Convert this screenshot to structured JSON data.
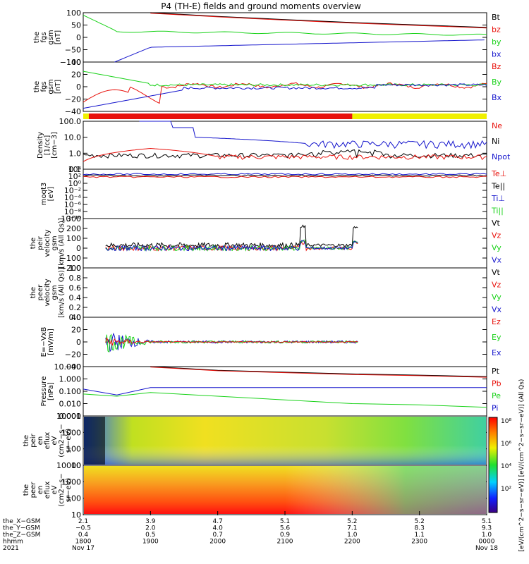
{
  "title": "P4 (TH-E) fields and ground moments overview",
  "colors": {
    "black": "#000000",
    "red": "#e8120c",
    "green": "#19d219",
    "blue": "#1414cc",
    "bar_red": "#e8120c",
    "bar_yellow": "#f0f000"
  },
  "panels": [
    {
      "ylabel": [
        "the",
        "fgs",
        "gsm",
        "[nT]"
      ],
      "ticks": [
        "100",
        "50",
        "0",
        "−50",
        "−100"
      ],
      "legend": [
        {
          "t": "Bt",
          "c": "black"
        },
        {
          "t": "bz",
          "c": "red"
        },
        {
          "t": "by",
          "c": "green"
        },
        {
          "t": "bx",
          "c": "blue"
        }
      ]
    },
    {
      "ylabel": [
        "the",
        "fgs",
        "gsm",
        "[nT]"
      ],
      "ticks": [
        "40",
        "20",
        "0",
        "−20",
        "−40"
      ],
      "legend": [
        {
          "t": "Bz",
          "c": "red"
        },
        {
          "t": "By",
          "c": "green"
        },
        {
          "t": "Bx",
          "c": "blue"
        }
      ]
    },
    {
      "ylabel": [
        "Density",
        "[1/cc]",
        "[cm−3]"
      ],
      "ticks": [
        "100.0",
        "10.0",
        "1.0",
        "0.1"
      ],
      "legend": [
        {
          "t": "Ne",
          "c": "red"
        },
        {
          "t": "Ni",
          "c": "black"
        },
        {
          "t": "Npot",
          "c": "blue"
        }
      ]
    },
    {
      "ylabel": [
        "moqt3",
        "[eV]"
      ],
      "ticks": [
        "10⁴",
        "10²",
        "10⁰",
        "10⁻²",
        "10⁻⁴",
        "10⁻⁶",
        "10⁻⁸",
        "10⁻¹⁰"
      ],
      "legend": [
        {
          "t": "Te⊥",
          "c": "red"
        },
        {
          "t": "Te||",
          "c": "black"
        },
        {
          "t": "Ti⊥",
          "c": "blue"
        },
        {
          "t": "Ti||",
          "c": "green"
        }
      ]
    },
    {
      "ylabel": [
        "the",
        "peir",
        "velocity",
        "gsm",
        "[km/s (All Qs)]"
      ],
      "ticks": [
        "300",
        "200",
        "100",
        "0",
        "−100",
        "−200"
      ],
      "legend": [
        {
          "t": "Vt",
          "c": "black"
        },
        {
          "t": "Vz",
          "c": "red"
        },
        {
          "t": "Vy",
          "c": "green"
        },
        {
          "t": "Vx",
          "c": "blue"
        }
      ]
    },
    {
      "ylabel": [
        "the",
        "peer",
        "velocity",
        "gsm",
        "[km/s (All Qs)]"
      ],
      "ticks": [
        "1.0",
        "0.8",
        "0.6",
        "0.4",
        "0.2",
        "0.0"
      ],
      "legend": [
        {
          "t": "Vt",
          "c": "black"
        },
        {
          "t": "Vz",
          "c": "red"
        },
        {
          "t": "Vy",
          "c": "green"
        },
        {
          "t": "Vx",
          "c": "blue"
        }
      ]
    },
    {
      "ylabel": [
        "E=−VxB",
        "[mV/m]"
      ],
      "ticks": [
        "40",
        "20",
        "0",
        "−20",
        "−40"
      ],
      "legend": [
        {
          "t": "Ez",
          "c": "red"
        },
        {
          "t": "Ey",
          "c": "green"
        },
        {
          "t": "Ex",
          "c": "blue"
        }
      ]
    },
    {
      "ylabel": [
        "Pressure",
        "[nPa]"
      ],
      "ticks": [
        "10.000",
        "1.000",
        "0.100",
        "0.010",
        "0.001"
      ],
      "legend": [
        {
          "t": "Pt",
          "c": "black"
        },
        {
          "t": "Pb",
          "c": "red"
        },
        {
          "t": "Pe",
          "c": "green"
        },
        {
          "t": "Pi",
          "c": "blue"
        }
      ]
    },
    {
      "ylabel": [
        "the",
        "peir",
        "en",
        "eflux",
        "eV",
        "(cm2−s−",
        "sr−eV)"
      ],
      "ticks": [
        "10000",
        "1000",
        "100",
        "10"
      ],
      "legend": []
    },
    {
      "ylabel": [
        "the",
        "peer",
        "en",
        "eflux",
        "eV",
        "(cm2−s−",
        "sr−eV)"
      ],
      "ticks": [
        "10000",
        "1000",
        "100",
        "10"
      ],
      "legend": []
    }
  ],
  "colorbar": {
    "ticks": [
      "10⁸",
      "10⁶",
      "10⁴",
      "10²"
    ],
    "label": "[eV/(cm^2−s−sr−eV)] [eV/(cm^2−s−sr−eV)] (All Qs)"
  },
  "xaxis": {
    "row_labels": [
      "the_X−GSM",
      "the_Y−GSM",
      "the_Z−GSM",
      "hhmm",
      "2021"
    ],
    "columns": [
      {
        "vals": [
          "2.1",
          "−0.5",
          "0.4",
          "1800",
          "Nov 17"
        ]
      },
      {
        "vals": [
          "3.9",
          "2.0",
          "0.5",
          "1900",
          ""
        ]
      },
      {
        "vals": [
          "4.7",
          "4.0",
          "0.7",
          "2000",
          ""
        ]
      },
      {
        "vals": [
          "5.1",
          "5.6",
          "0.9",
          "2100",
          ""
        ]
      },
      {
        "vals": [
          "5.2",
          "7.1",
          "1.0",
          "2200",
          ""
        ]
      },
      {
        "vals": [
          "5.2",
          "8.3",
          "1.1",
          "2300",
          ""
        ]
      },
      {
        "vals": [
          "5.1",
          "9.3",
          "1.0",
          "0000",
          "Nov 18"
        ]
      }
    ]
  },
  "chart_data": {
    "type": "line",
    "title": "P4 (TH-E) fields and ground moments overview",
    "time_range": [
      "2021-11-17 18:00",
      "2021-11-18 00:00"
    ],
    "series": [
      {
        "name": "Bt",
        "panel": 0,
        "t": [
          1800,
          1900,
          2000,
          2100,
          2200,
          2300,
          2400
        ],
        "values": [
          110,
          100,
          85,
          72,
          60,
          50,
          40
        ]
      },
      {
        "name": "by",
        "panel": 0,
        "t": [
          1800,
          1830,
          1900,
          2000,
          2100,
          2200,
          2300,
          2400
        ],
        "values": [
          90,
          25,
          15,
          10,
          5,
          2,
          10,
          15
        ]
      },
      {
        "name": "bx",
        "panel": 0,
        "t": [
          1830,
          1900,
          2000,
          2100,
          2200,
          2300,
          2400
        ],
        "values": [
          -100,
          -40,
          -20,
          -15,
          -10,
          -8,
          -8
        ]
      },
      {
        "name": "Pt",
        "panel": 7,
        "t": [
          1900,
          2000,
          2100,
          2200,
          2300,
          2400
        ],
        "values": [
          10,
          5,
          3.5,
          2.5,
          2,
          1.5
        ]
      },
      {
        "name": "Pe",
        "panel": 7,
        "t": [
          1800,
          1830,
          1900,
          2000,
          2100,
          2200,
          2300,
          2400
        ],
        "values": [
          0.06,
          0.04,
          0.08,
          0.04,
          0.02,
          0.01,
          0.008,
          0.005
        ]
      },
      {
        "name": "Pi",
        "panel": 7,
        "t": [
          1800,
          1830,
          1900,
          2000,
          2100,
          2200,
          2300,
          2400
        ],
        "values": [
          0.15,
          0.05,
          0.2,
          0.2,
          0.2,
          0.2,
          0.2,
          0.2
        ]
      }
    ]
  }
}
